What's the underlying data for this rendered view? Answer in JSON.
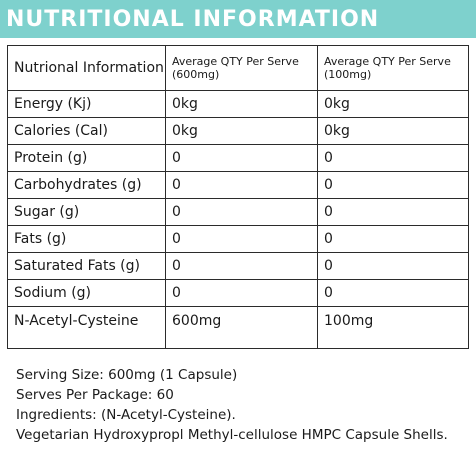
{
  "banner": {
    "title": "NUTRITIONAL INFORMATION",
    "background_color": "#7ed1cd",
    "text_color": "#ffffff"
  },
  "table": {
    "headers": [
      "Nutrional Information",
      "Average QTY Per Serve (600mg)",
      "Average QTY Per Serve (100mg)"
    ],
    "rows": [
      {
        "nutrient": "Energy (Kj)",
        "per_600mg": "0kg",
        "per_100mg": "0kg"
      },
      {
        "nutrient": "Calories (Cal)",
        "per_600mg": "0kg",
        "per_100mg": "0kg"
      },
      {
        "nutrient": "Protein (g)",
        "per_600mg": "0",
        "per_100mg": "0"
      },
      {
        "nutrient": "Carbohydrates (g)",
        "per_600mg": "0",
        "per_100mg": "0"
      },
      {
        "nutrient": "Sugar (g)",
        "per_600mg": "0",
        "per_100mg": "0"
      },
      {
        "nutrient": "Fats (g)",
        "per_600mg": "0",
        "per_100mg": "0"
      },
      {
        "nutrient": "Saturated Fats (g)",
        "per_600mg": "0",
        "per_100mg": "0"
      },
      {
        "nutrient": "Sodium (g)",
        "per_600mg": "0",
        "per_100mg": "0"
      },
      {
        "nutrient": "N-Acetyl-Cysteine",
        "per_600mg": "600mg",
        "per_100mg": "100mg"
      }
    ]
  },
  "notes": {
    "serving_size": "Serving Size: 600mg (1 Capsule)",
    "serves_per_package": "Serves Per Package: 60",
    "ingredients": "Ingredients: (N-Acetyl-Cysteine).",
    "capsule": "Vegetarian Hydroxypropl Methyl-cellulose HMPC Capsule Shells."
  }
}
